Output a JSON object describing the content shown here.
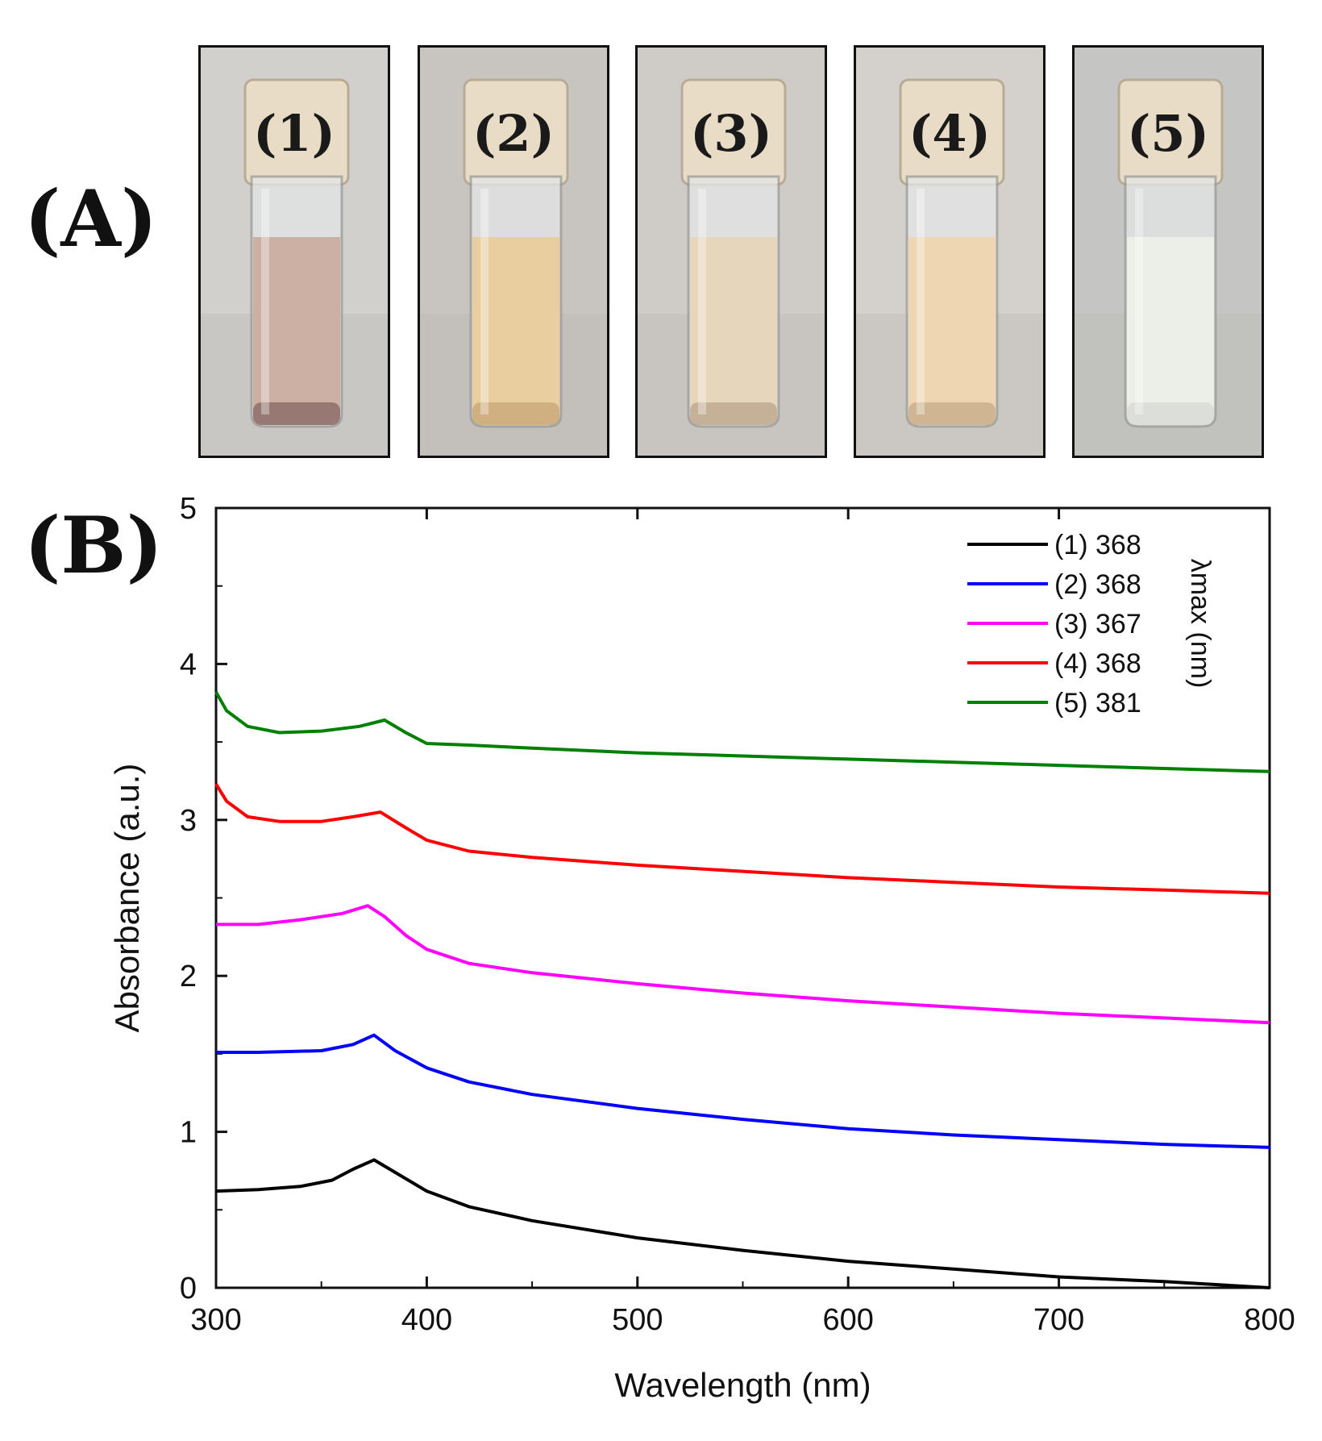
{
  "panels": {
    "a_label": "(A)",
    "b_label": "(B)"
  },
  "vials": [
    {
      "label": "(1)",
      "liquid_color": "#cdb0a4",
      "bottom_color": "#8a6a66",
      "background": "#d2d0cc"
    },
    {
      "label": "(2)",
      "liquid_color": "#e9cfa0",
      "bottom_color": "#c9a878",
      "background": "#c8c4c0"
    },
    {
      "label": "(3)",
      "liquid_color": "#e6d6bc",
      "bottom_color": "#bda88f",
      "background": "#cfccc8"
    },
    {
      "label": "(4)",
      "liquid_color": "#efd6b2",
      "bottom_color": "#c8ad8a",
      "background": "#d4d1cd"
    },
    {
      "label": "(5)",
      "liquid_color": "#eceee8",
      "bottom_color": "#d8dad4",
      "background": "#c5c6c4"
    }
  ],
  "chart_data": {
    "type": "line",
    "xlabel": "Wavelength (nm)",
    "ylabel": "Absorbance (a.u.)",
    "xlim": [
      300,
      800
    ],
    "ylim": [
      0,
      5
    ],
    "xticks": [
      "300",
      "400",
      "500",
      "600",
      "700",
      "800"
    ],
    "yticks": [
      "0",
      "1",
      "2",
      "3",
      "4",
      "5"
    ],
    "legend_title": "λmax (nm)",
    "legend_position": "top-right",
    "series": [
      {
        "name": "(1) 368",
        "color": "#000000",
        "x": [
          300,
          320,
          340,
          355,
          365,
          375,
          385,
          400,
          420,
          450,
          500,
          550,
          600,
          650,
          700,
          750,
          800
        ],
        "y": [
          0.62,
          0.63,
          0.65,
          0.69,
          0.76,
          0.82,
          0.74,
          0.62,
          0.52,
          0.43,
          0.32,
          0.24,
          0.17,
          0.12,
          0.07,
          0.04,
          0.0
        ]
      },
      {
        "name": "(2) 368",
        "color": "#0000ff",
        "x": [
          300,
          320,
          350,
          365,
          375,
          385,
          400,
          420,
          450,
          500,
          550,
          600,
          650,
          700,
          750,
          800
        ],
        "y": [
          1.51,
          1.51,
          1.52,
          1.56,
          1.62,
          1.52,
          1.41,
          1.32,
          1.24,
          1.15,
          1.08,
          1.02,
          0.98,
          0.95,
          0.92,
          0.9
        ]
      },
      {
        "name": "(3) 367",
        "color": "#ff00ff",
        "x": [
          300,
          320,
          340,
          360,
          372,
          380,
          390,
          400,
          420,
          450,
          500,
          550,
          600,
          650,
          700,
          750,
          800
        ],
        "y": [
          2.33,
          2.33,
          2.36,
          2.4,
          2.45,
          2.38,
          2.26,
          2.17,
          2.08,
          2.02,
          1.95,
          1.89,
          1.84,
          1.8,
          1.76,
          1.73,
          1.7
        ]
      },
      {
        "name": "(4) 368",
        "color": "#ff0000",
        "x": [
          300,
          305,
          315,
          330,
          350,
          365,
          378,
          390,
          400,
          420,
          450,
          500,
          550,
          600,
          650,
          700,
          750,
          800
        ],
        "y": [
          3.23,
          3.12,
          3.02,
          2.99,
          2.99,
          3.02,
          3.05,
          2.95,
          2.87,
          2.8,
          2.76,
          2.71,
          2.67,
          2.63,
          2.6,
          2.57,
          2.55,
          2.53
        ]
      },
      {
        "name": "(5) 381",
        "color": "#008000",
        "x": [
          300,
          305,
          315,
          330,
          350,
          368,
          380,
          390,
          400,
          420,
          450,
          500,
          550,
          600,
          650,
          700,
          750,
          800
        ],
        "y": [
          3.82,
          3.7,
          3.6,
          3.56,
          3.57,
          3.6,
          3.64,
          3.56,
          3.49,
          3.48,
          3.46,
          3.43,
          3.41,
          3.39,
          3.37,
          3.35,
          3.33,
          3.31
        ]
      }
    ]
  }
}
